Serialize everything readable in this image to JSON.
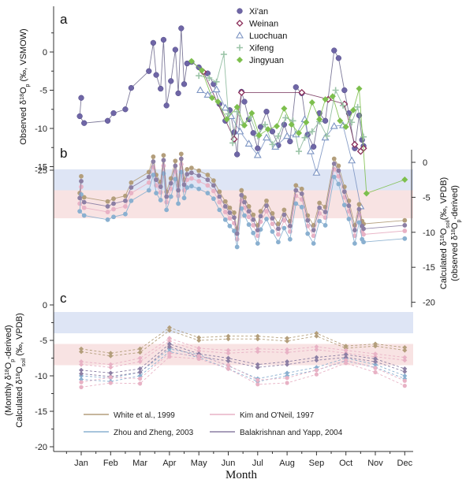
{
  "chart_data": [
    {
      "panel": "a",
      "type": "line",
      "ylabel_parts": [
        "Observed δ",
        "18",
        "O",
        "p",
        " (‰, VSMOW)"
      ],
      "ylim": [
        -15,
        5
      ],
      "yticks": [
        -15,
        -10,
        -5,
        0
      ],
      "months": [
        "Jan",
        "Feb",
        "Mar",
        "Apr",
        "May",
        "Jun",
        "Jul",
        "Aug",
        "Sep",
        "Oct",
        "Nov",
        "Dec"
      ],
      "series": [
        {
          "name": "Xi'an",
          "color": "#6f66a6",
          "marker": "circle",
          "line": "#6f6a8e",
          "points": [
            [
              1.0,
              -6.0
            ],
            [
              0.95,
              -8.4
            ],
            [
              1.1,
              -9.3
            ],
            [
              1.9,
              -9.0
            ],
            [
              2.1,
              -8.0
            ],
            [
              2.5,
              -7.5
            ],
            [
              2.7,
              -4.7
            ],
            [
              3.3,
              -2.5
            ],
            [
              3.45,
              1.2
            ],
            [
              3.55,
              -3.0
            ],
            [
              3.7,
              -4.8
            ],
            [
              3.8,
              1.6
            ],
            [
              3.9,
              -7.0
            ],
            [
              4.05,
              -3.8
            ],
            [
              4.2,
              0.3
            ],
            [
              4.3,
              -5.4
            ],
            [
              4.4,
              3.1
            ],
            [
              4.5,
              -4.2
            ],
            [
              4.6,
              -1.5
            ],
            [
              4.75,
              -1.3
            ],
            [
              5.0,
              -2.0
            ],
            [
              5.3,
              -2.8
            ],
            [
              5.5,
              -4.2
            ],
            [
              5.7,
              -6.8
            ],
            [
              5.9,
              -9.0
            ],
            [
              6.05,
              -7.6
            ],
            [
              6.2,
              -10.5
            ],
            [
              6.3,
              -13.4
            ],
            [
              6.45,
              -5.2
            ],
            [
              6.55,
              -6.5
            ],
            [
              6.7,
              -8.8
            ],
            [
              6.85,
              -10.6
            ],
            [
              7.0,
              -12.6
            ],
            [
              7.1,
              -9.8
            ],
            [
              7.3,
              -7.8
            ],
            [
              7.5,
              -10.4
            ],
            [
              7.7,
              -12.2
            ],
            [
              7.9,
              -9.5
            ],
            [
              8.1,
              -11.7
            ],
            [
              8.3,
              -4.6
            ],
            [
              8.5,
              -5.4
            ],
            [
              8.7,
              -10.8
            ],
            [
              8.9,
              -12.4
            ],
            [
              9.1,
              -8.0
            ],
            [
              9.3,
              -9.0
            ],
            [
              9.6,
              0.2
            ],
            [
              9.75,
              -0.8
            ],
            [
              9.95,
              -5.0
            ],
            [
              10.1,
              -8.0
            ],
            [
              10.3,
              -12.6
            ],
            [
              10.45,
              -8.3
            ],
            [
              10.55,
              -11.5
            ],
            [
              10.6,
              -12.3
            ]
          ]
        },
        {
          "name": "Weinan",
          "color": "#8b2d59",
          "marker": "diamond-open",
          "line": "#7a3a60",
          "points": [
            [
              5.15,
              -2.6
            ],
            [
              6.2,
              -11.4
            ],
            [
              6.45,
              -5.3
            ],
            [
              8.5,
              -5.3
            ],
            [
              9.4,
              -6.2
            ],
            [
              9.95,
              -6.8
            ],
            [
              10.3,
              -12.1
            ],
            [
              10.5,
              -13.0
            ],
            [
              10.6,
              -12.6
            ]
          ]
        },
        {
          "name": "Luochuan",
          "color": "#7b93c2",
          "marker": "triangle-open",
          "line": "#7b93c2",
          "points": [
            [
              5.05,
              -5.0
            ],
            [
              5.3,
              -5.6
            ],
            [
              5.6,
              -4.9
            ],
            [
              5.9,
              -7.3
            ],
            [
              6.1,
              -8.4
            ],
            [
              6.4,
              -10.4
            ],
            [
              6.7,
              -12.0
            ],
            [
              7.0,
              -13.5
            ],
            [
              7.3,
              -11.2
            ],
            [
              7.6,
              -12.4
            ],
            [
              8.0,
              -11.0
            ],
            [
              8.3,
              -10.8
            ],
            [
              8.6,
              -8.8
            ],
            [
              8.8,
              -13.0
            ],
            [
              9.0,
              -15.8
            ],
            [
              9.3,
              -11.2
            ],
            [
              9.6,
              -9.7
            ],
            [
              9.9,
              -9.6
            ],
            [
              10.2,
              -14.2
            ],
            [
              10.5,
              -20.2
            ]
          ]
        },
        {
          "name": "Xifeng",
          "color": "#9cc5a8",
          "marker": "plus",
          "line": "#8ab89a",
          "points": [
            [
              5.0,
              -3.1
            ],
            [
              5.35,
              -3.4
            ],
            [
              5.6,
              -3.9
            ],
            [
              5.85,
              -0.3
            ],
            [
              6.0,
              -8.1
            ],
            [
              6.15,
              -11.9
            ],
            [
              6.3,
              -7.8
            ],
            [
              6.5,
              -9.5
            ],
            [
              6.75,
              -8.5
            ],
            [
              7.0,
              -11.0
            ],
            [
              7.25,
              -9.5
            ],
            [
              7.5,
              -12.1
            ],
            [
              7.7,
              -11.0
            ],
            [
              7.95,
              -8.6
            ],
            [
              8.2,
              -9.0
            ],
            [
              8.4,
              -13.0
            ],
            [
              8.6,
              -11.2
            ],
            [
              8.85,
              -10.4
            ],
            [
              9.1,
              -9.1
            ],
            [
              9.35,
              -11.0
            ],
            [
              9.65,
              -5.0
            ],
            [
              9.9,
              -7.0
            ],
            [
              10.2,
              -9.2
            ],
            [
              10.4,
              -7.2
            ],
            [
              10.6,
              -11.1
            ]
          ]
        },
        {
          "name": "Jingyuan",
          "color": "#7dbf4d",
          "marker": "diamond",
          "line": "#7dbf4d",
          "points": [
            [
              4.75,
              -1.2
            ],
            [
              5.1,
              -2.4
            ],
            [
              5.45,
              -6.0
            ],
            [
              5.65,
              -6.5
            ],
            [
              5.95,
              -8.8
            ],
            [
              6.3,
              -7.2
            ],
            [
              6.55,
              -9.6
            ],
            [
              6.8,
              -8.0
            ],
            [
              7.05,
              -10.9
            ],
            [
              7.35,
              -10.1
            ],
            [
              7.65,
              -9.7
            ],
            [
              7.9,
              -7.4
            ],
            [
              8.15,
              -9.5
            ],
            [
              8.4,
              -10.6
            ],
            [
              8.65,
              -9.2
            ],
            [
              8.85,
              -6.6
            ],
            [
              9.1,
              -8.8
            ],
            [
              9.3,
              -6.2
            ],
            [
              9.55,
              -5.8
            ],
            [
              9.8,
              -9.0
            ],
            [
              10.0,
              -9.8
            ],
            [
              10.25,
              -7.6
            ],
            [
              10.45,
              -4.8
            ],
            [
              10.7,
              -18.5
            ],
            [
              12.0,
              -16.7
            ]
          ]
        }
      ]
    },
    {
      "panel": "b",
      "type": "line",
      "ylabel_parts": [
        "Calculated δ",
        "18",
        "O",
        "soil",
        "(‰, VPDB)",
        "(observed δ",
        "18",
        "O",
        "p",
        "-derived)"
      ],
      "ylim": [
        -20,
        0
      ],
      "yticks": [
        -20,
        -15,
        -10,
        -5,
        0
      ],
      "left_tick": "-25",
      "bands": [
        [
          -4,
          -1,
          "#c8d4ee"
        ],
        [
          -8,
          -4,
          "#f4d0d0"
        ]
      ],
      "methods": [
        {
          "name": "White et al., 1999",
          "color": "#b39e7b",
          "offset": 0
        },
        {
          "name": "Kim and O'Neil, 1997",
          "color": "#e8b2c5",
          "offset": -1.5
        },
        {
          "name": "Zhou and Zheng, 2003",
          "color": "#8ab0d0",
          "offset": -2.6
        },
        {
          "name": "Balakrishnan and Yapp, 2004",
          "color": "#8c7fa4",
          "offset": -0.7
        }
      ],
      "base": [
        [
          1.0,
          -2.0
        ],
        [
          0.95,
          -4.4
        ],
        [
          1.1,
          -5.0
        ],
        [
          1.9,
          -5.6
        ],
        [
          2.1,
          -5.2
        ],
        [
          2.5,
          -4.8
        ],
        [
          2.7,
          -2.9
        ],
        [
          3.3,
          -1.4
        ],
        [
          3.45,
          0.8
        ],
        [
          3.55,
          -1.8
        ],
        [
          3.7,
          -2.8
        ],
        [
          3.8,
          1.0
        ],
        [
          3.9,
          -4.2
        ],
        [
          4.05,
          -2.3
        ],
        [
          4.2,
          0.2
        ],
        [
          4.3,
          -3.3
        ],
        [
          4.4,
          1.2
        ],
        [
          4.5,
          -2.5
        ],
        [
          4.6,
          -1.0
        ],
        [
          4.75,
          -0.8
        ],
        [
          5.0,
          -1.2
        ],
        [
          5.3,
          -1.8
        ],
        [
          5.5,
          -2.6
        ],
        [
          5.7,
          -4.2
        ],
        [
          5.9,
          -5.6
        ],
        [
          6.05,
          -6.5
        ],
        [
          6.2,
          -7.2
        ],
        [
          6.3,
          -9.5
        ],
        [
          6.45,
          -4.0
        ],
        [
          6.55,
          -5.0
        ],
        [
          6.7,
          -6.3
        ],
        [
          6.85,
          -7.5
        ],
        [
          7.0,
          -9.0
        ],
        [
          7.1,
          -7.0
        ],
        [
          7.3,
          -5.5
        ],
        [
          7.5,
          -7.3
        ],
        [
          7.7,
          -8.8
        ],
        [
          7.9,
          -6.8
        ],
        [
          8.1,
          -8.4
        ],
        [
          8.3,
          -3.3
        ],
        [
          8.5,
          -3.8
        ],
        [
          8.7,
          -7.6
        ],
        [
          8.9,
          -9.0
        ],
        [
          9.1,
          -5.8
        ],
        [
          9.3,
          -6.4
        ],
        [
          9.6,
          0.5
        ],
        [
          9.75,
          -0.5
        ],
        [
          9.95,
          -3.5
        ],
        [
          10.1,
          -5.5
        ],
        [
          10.3,
          -9.0
        ],
        [
          10.45,
          -6.0
        ],
        [
          10.55,
          -8.4
        ],
        [
          10.6,
          -8.8
        ],
        [
          12.0,
          -8.3
        ]
      ]
    },
    {
      "panel": "c",
      "type": "line",
      "ylabel_parts": [
        "(Monthly δ",
        "18",
        "O",
        "p",
        "-derived)",
        "Calculated δ",
        "18",
        "O",
        "soil",
        " (‰, VPDB)"
      ],
      "ylim": [
        -20,
        0
      ],
      "yticks": [
        -20,
        -15,
        -10,
        -5,
        0
      ],
      "bands": [
        [
          -4,
          -1,
          "#c8d4ee"
        ],
        [
          -8.5,
          -5.5,
          "#f4d0d0"
        ]
      ],
      "x": [
        1,
        2,
        3,
        4,
        5,
        6,
        7,
        8,
        9,
        10,
        11,
        12
      ],
      "series": [
        {
          "name": "White et al., 1999",
          "color": "#b39e7b",
          "values": [
            [
              -6.2,
              -6.6
            ],
            [
              -6.8,
              -7.2
            ],
            [
              -6.2,
              -6.7
            ],
            [
              -3.2,
              -3.6
            ],
            [
              -4.6,
              -5.0
            ],
            [
              -4.4,
              -4.8
            ],
            [
              -4.4,
              -4.8
            ],
            [
              -4.7,
              -5.1
            ],
            [
              -4.0,
              -4.4
            ],
            [
              -5.8,
              -6.1
            ],
            [
              -5.5,
              -5.8
            ],
            [
              -6.0,
              -6.4
            ]
          ]
        },
        {
          "name": "Kim and O'Neil, 1997",
          "color": "#e8b2c5",
          "values": [
            [
              -8.0,
              -8.4
            ],
            [
              -8.4,
              -8.8
            ],
            [
              -7.5,
              -8.0
            ],
            [
              -4.7,
              -5.1
            ],
            [
              -6.1,
              -6.5
            ],
            [
              -6.4,
              -6.8
            ],
            [
              -6.2,
              -6.6
            ],
            [
              -6.3,
              -6.7
            ],
            [
              -5.9,
              -6.3
            ],
            [
              -6.4,
              -6.8
            ],
            [
              -6.9,
              -7.3
            ],
            [
              -7.4,
              -7.8
            ]
          ]
        },
        {
          "name": "Zhou and Zheng, 2003",
          "color": "#8ab0d0",
          "values": [
            [
              -10.0,
              -10.5
            ],
            [
              -10.3,
              -10.8
            ],
            [
              -9.5,
              -10.0
            ],
            [
              -6.2,
              -6.6
            ],
            [
              -7.0,
              -7.4
            ],
            [
              -8.6,
              -9.0
            ],
            [
              -10.4,
              -10.8
            ],
            [
              -9.6,
              -10.0
            ],
            [
              -8.8,
              -9.2
            ],
            [
              -7.5,
              -7.9
            ],
            [
              -8.4,
              -8.8
            ],
            [
              -10.0,
              -10.4
            ]
          ]
        },
        {
          "name": "Balakrishnan and Yapp, 2004",
          "color": "#8c7fa4",
          "values": [
            [
              -9.2,
              -9.7
            ],
            [
              -9.6,
              -10.1
            ],
            [
              -9.0,
              -9.5
            ],
            [
              -5.5,
              -5.9
            ],
            [
              -6.9,
              -7.3
            ],
            [
              -7.5,
              -7.9
            ],
            [
              -8.4,
              -8.8
            ],
            [
              -8.0,
              -8.4
            ],
            [
              -7.4,
              -7.8
            ],
            [
              -7.0,
              -7.4
            ],
            [
              -7.6,
              -8.0
            ],
            [
              -9.0,
              -9.4
            ]
          ]
        }
      ],
      "extra_low": [
        [
          -11.6,
          -10.9
        ],
        [
          -11.0,
          -10.2
        ],
        [
          -11.1,
          -10.4
        ],
        [
          -7.3,
          -6.8
        ],
        [
          -7.6,
          -7.2
        ],
        [
          -9.0,
          -8.5
        ],
        [
          -11.2,
          -10.6
        ],
        [
          -11.0,
          -10.3
        ],
        [
          -9.8,
          -9.2
        ],
        [
          -8.2,
          -7.8
        ],
        [
          -9.5,
          -8.9
        ],
        [
          -11.4,
          -10.7
        ]
      ],
      "legend": [
        "White et al., 1999",
        "Kim and O'Neil, 1997",
        "Zhou and Zheng, 2003",
        "Balakrishnan and Yapp, 2004"
      ]
    }
  ],
  "labels": {
    "panel_a": "a",
    "panel_b": "b",
    "panel_c": "c",
    "xlabel": "Month"
  }
}
